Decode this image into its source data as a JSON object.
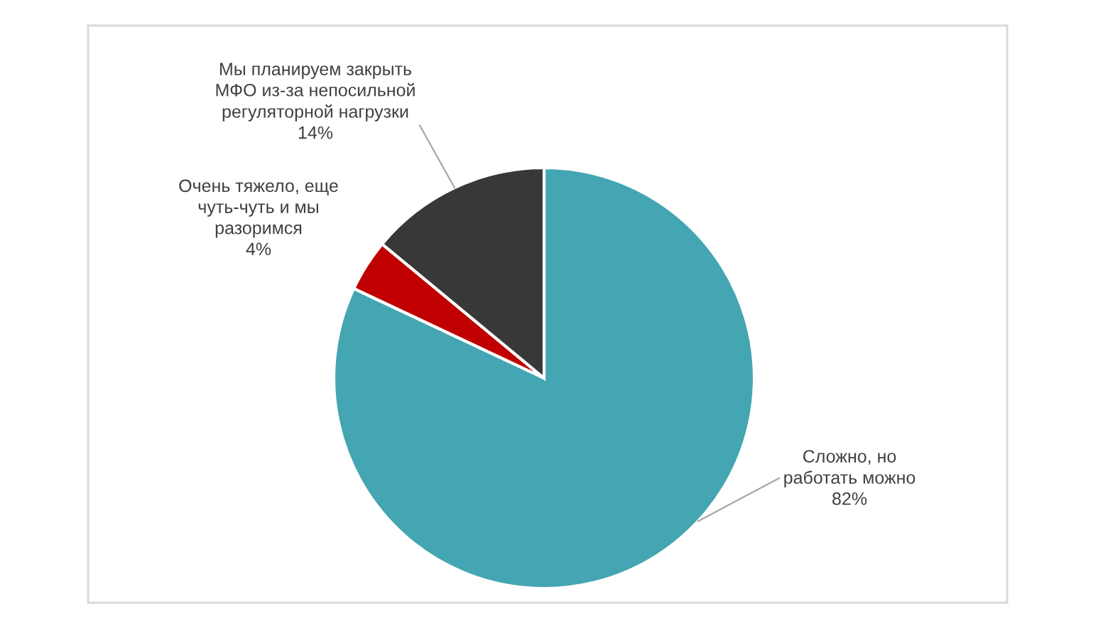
{
  "chart_data": {
    "type": "pie",
    "categories": [
      "Сложно, но\nработать можно",
      "Очень тяжело, еще\nчуть-чуть и мы\nразоримся",
      "Мы планируем закрыть\nМФО из-за непосильной\nрегуляторной нагрузки"
    ],
    "values": [
      82,
      4,
      14
    ],
    "colors": [
      "#43a6b2",
      "#c00000",
      "#383838"
    ],
    "value_labels": [
      "82%",
      "4%",
      "14%"
    ],
    "legend": false
  }
}
